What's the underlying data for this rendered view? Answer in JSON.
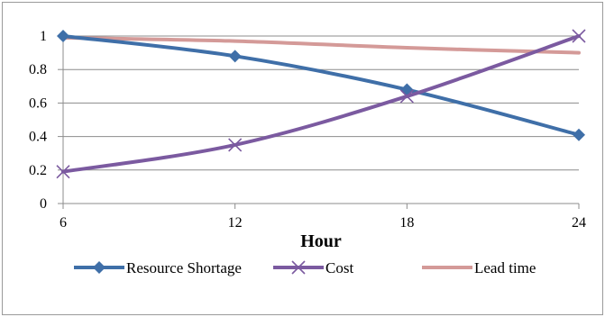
{
  "chart_data": {
    "type": "line",
    "x": [
      6,
      12,
      18,
      24
    ],
    "x_ticks": [
      "6",
      "12",
      "18",
      "24"
    ],
    "y_ticks": [
      "0",
      "0.2",
      "0.4",
      "0.6",
      "0.8",
      "1"
    ],
    "ylim": [
      0,
      1
    ],
    "xlabel": "Hour",
    "ylabel": "",
    "grid": true,
    "legend_position": "bottom",
    "series": [
      {
        "name": "Resource Shortage",
        "values": [
          1.0,
          0.88,
          0.68,
          0.41
        ],
        "color": "#3f6fa8",
        "marker": "diamond"
      },
      {
        "name": "Cost",
        "values": [
          0.19,
          0.35,
          0.64,
          1.0
        ],
        "color": "#7b5aa0",
        "marker": "x"
      },
      {
        "name": "Lead time",
        "values": [
          0.99,
          0.97,
          0.93,
          0.9
        ],
        "color": "#d49a98",
        "marker": "none"
      }
    ]
  }
}
